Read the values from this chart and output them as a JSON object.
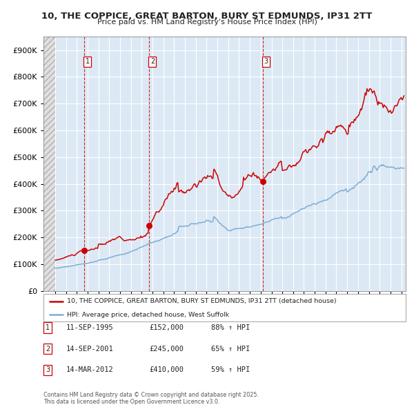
{
  "title1": "10, THE COPPICE, GREAT BARTON, BURY ST EDMUNDS, IP31 2TT",
  "title2": "Price paid vs. HM Land Registry's House Price Index (HPI)",
  "sale_dates": [
    "1995-09-11",
    "2001-09-14",
    "2012-03-14"
  ],
  "sale_prices": [
    152000,
    245000,
    410000
  ],
  "sale_labels": [
    "1",
    "2",
    "3"
  ],
  "legend_line1": "10, THE COPPICE, GREAT BARTON, BURY ST EDMUNDS, IP31 2TT (detached house)",
  "legend_line2": "HPI: Average price, detached house, West Suffolk",
  "table_rows": [
    [
      "1",
      "11-SEP-1995",
      "£152,000",
      "88% ↑ HPI"
    ],
    [
      "2",
      "14-SEP-2001",
      "£245,000",
      "65% ↑ HPI"
    ],
    [
      "3",
      "14-MAR-2012",
      "£410,000",
      "59% ↑ HPI"
    ]
  ],
  "footnote": "Contains HM Land Registry data © Crown copyright and database right 2025.\nThis data is licensed under the Open Government Licence v3.0.",
  "bg_color": "#dce9f5",
  "grid_color": "#ffffff",
  "red_line_color": "#cc0000",
  "blue_line_color": "#7dadd4",
  "sale_dot_color": "#cc0000",
  "dashed_line_color": "#cc0000",
  "ylim_max": 950000,
  "xlabel_start_year": 1993,
  "xlabel_end_year": 2025
}
